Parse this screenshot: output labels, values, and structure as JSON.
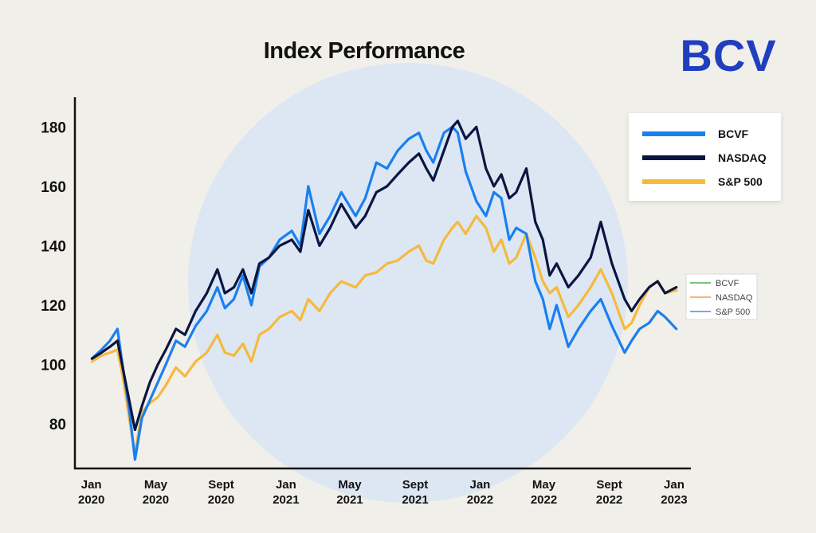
{
  "brand": {
    "logo_text": "BCV",
    "logo_color": "#1f3fbf"
  },
  "colors": {
    "background": "#f1efe9",
    "circle": "#dce7f3",
    "axis": "#111111",
    "small_legend_bcvf": "#4caf50",
    "small_legend_nasdaq": "#f39c4b",
    "small_legend_sp500": "#4a8fd8"
  },
  "chart_data": {
    "type": "line",
    "title": "Index Performance",
    "xlabel": "",
    "ylabel": "",
    "grid": false,
    "legend_position": "top-right",
    "xlim": [
      "2019-12-01",
      "2023-01-31"
    ],
    "ylim": [
      65,
      190
    ],
    "y_ticks": [
      80,
      100,
      120,
      140,
      160,
      180
    ],
    "x_ticks": [
      {
        "date": "2020-01-01",
        "line1": "Jan",
        "line2": "2020"
      },
      {
        "date": "2020-05-01",
        "line1": "May",
        "line2": "2020"
      },
      {
        "date": "2020-09-01",
        "line1": "Sept",
        "line2": "2020"
      },
      {
        "date": "2021-01-01",
        "line1": "Jan",
        "line2": "2021"
      },
      {
        "date": "2021-05-01",
        "line1": "May",
        "line2": "2021"
      },
      {
        "date": "2021-09-01",
        "line1": "Sept",
        "line2": "2021"
      },
      {
        "date": "2022-01-01",
        "line1": "Jan",
        "line2": "2022"
      },
      {
        "date": "2022-05-01",
        "line1": "May",
        "line2": "2022"
      },
      {
        "date": "2022-09-01",
        "line1": "Sept",
        "line2": "2022"
      },
      {
        "date": "2023-01-01",
        "line1": "Jan",
        "line2": "2023"
      }
    ],
    "series": [
      {
        "name": "BCVF",
        "color": "#1a7ff0",
        "points": [
          [
            "2020-01-02",
            102
          ],
          [
            "2020-01-20",
            105
          ],
          [
            "2020-02-05",
            108
          ],
          [
            "2020-02-19",
            112
          ],
          [
            "2020-03-01",
            98
          ],
          [
            "2020-03-12",
            85
          ],
          [
            "2020-03-23",
            68
          ],
          [
            "2020-04-05",
            82
          ],
          [
            "2020-04-20",
            88
          ],
          [
            "2020-05-05",
            94
          ],
          [
            "2020-05-20",
            100
          ],
          [
            "2020-06-08",
            108
          ],
          [
            "2020-06-25",
            106
          ],
          [
            "2020-07-15",
            113
          ],
          [
            "2020-08-05",
            118
          ],
          [
            "2020-08-25",
            126
          ],
          [
            "2020-09-08",
            119
          ],
          [
            "2020-09-25",
            122
          ],
          [
            "2020-10-12",
            130
          ],
          [
            "2020-10-28",
            120
          ],
          [
            "2020-11-12",
            133
          ],
          [
            "2020-11-30",
            136
          ],
          [
            "2020-12-20",
            142
          ],
          [
            "2021-01-12",
            145
          ],
          [
            "2021-01-28",
            140
          ],
          [
            "2021-02-12",
            160
          ],
          [
            "2021-03-05",
            144
          ],
          [
            "2021-03-25",
            150
          ],
          [
            "2021-04-15",
            158
          ],
          [
            "2021-05-12",
            150
          ],
          [
            "2021-05-30",
            156
          ],
          [
            "2021-06-20",
            168
          ],
          [
            "2021-07-10",
            166
          ],
          [
            "2021-07-30",
            172
          ],
          [
            "2021-08-20",
            176
          ],
          [
            "2021-09-08",
            178
          ],
          [
            "2021-09-22",
            172
          ],
          [
            "2021-10-05",
            168
          ],
          [
            "2021-10-25",
            178
          ],
          [
            "2021-11-10",
            180
          ],
          [
            "2021-11-20",
            178
          ],
          [
            "2021-12-05",
            165
          ],
          [
            "2021-12-25",
            155
          ],
          [
            "2022-01-12",
            150
          ],
          [
            "2022-01-27",
            158
          ],
          [
            "2022-02-10",
            156
          ],
          [
            "2022-02-25",
            142
          ],
          [
            "2022-03-10",
            146
          ],
          [
            "2022-03-29",
            144
          ],
          [
            "2022-04-15",
            128
          ],
          [
            "2022-04-29",
            122
          ],
          [
            "2022-05-12",
            112
          ],
          [
            "2022-05-25",
            120
          ],
          [
            "2022-06-16",
            106
          ],
          [
            "2022-07-05",
            112
          ],
          [
            "2022-07-28",
            118
          ],
          [
            "2022-08-16",
            122
          ],
          [
            "2022-09-06",
            113
          ],
          [
            "2022-09-30",
            104
          ],
          [
            "2022-10-13",
            108
          ],
          [
            "2022-10-28",
            112
          ],
          [
            "2022-11-15",
            114
          ],
          [
            "2022-12-01",
            118
          ],
          [
            "2022-12-15",
            116
          ],
          [
            "2023-01-05",
            112
          ]
        ]
      },
      {
        "name": "NASDAQ",
        "color": "#0b1541",
        "points": [
          [
            "2020-01-02",
            102
          ],
          [
            "2020-01-20",
            104
          ],
          [
            "2020-02-05",
            106
          ],
          [
            "2020-02-19",
            108
          ],
          [
            "2020-03-01",
            98
          ],
          [
            "2020-03-12",
            88
          ],
          [
            "2020-03-23",
            78
          ],
          [
            "2020-04-05",
            86
          ],
          [
            "2020-04-20",
            94
          ],
          [
            "2020-05-05",
            100
          ],
          [
            "2020-05-20",
            105
          ],
          [
            "2020-06-08",
            112
          ],
          [
            "2020-06-25",
            110
          ],
          [
            "2020-07-15",
            118
          ],
          [
            "2020-08-05",
            124
          ],
          [
            "2020-08-25",
            132
          ],
          [
            "2020-09-08",
            124
          ],
          [
            "2020-09-25",
            126
          ],
          [
            "2020-10-12",
            132
          ],
          [
            "2020-10-28",
            124
          ],
          [
            "2020-11-12",
            134
          ],
          [
            "2020-11-30",
            136
          ],
          [
            "2020-12-20",
            140
          ],
          [
            "2021-01-12",
            142
          ],
          [
            "2021-01-28",
            138
          ],
          [
            "2021-02-12",
            152
          ],
          [
            "2021-03-05",
            140
          ],
          [
            "2021-03-25",
            146
          ],
          [
            "2021-04-15",
            154
          ],
          [
            "2021-05-12",
            146
          ],
          [
            "2021-05-30",
            150
          ],
          [
            "2021-06-20",
            158
          ],
          [
            "2021-07-10",
            160
          ],
          [
            "2021-07-30",
            164
          ],
          [
            "2021-08-20",
            168
          ],
          [
            "2021-09-08",
            171
          ],
          [
            "2021-09-22",
            166
          ],
          [
            "2021-10-05",
            162
          ],
          [
            "2021-10-25",
            172
          ],
          [
            "2021-11-10",
            180
          ],
          [
            "2021-11-20",
            182
          ],
          [
            "2021-12-05",
            176
          ],
          [
            "2021-12-25",
            180
          ],
          [
            "2022-01-12",
            166
          ],
          [
            "2022-01-27",
            160
          ],
          [
            "2022-02-10",
            164
          ],
          [
            "2022-02-25",
            156
          ],
          [
            "2022-03-10",
            158
          ],
          [
            "2022-03-29",
            166
          ],
          [
            "2022-04-15",
            148
          ],
          [
            "2022-04-29",
            142
          ],
          [
            "2022-05-12",
            130
          ],
          [
            "2022-05-25",
            134
          ],
          [
            "2022-06-16",
            126
          ],
          [
            "2022-07-05",
            130
          ],
          [
            "2022-07-28",
            136
          ],
          [
            "2022-08-16",
            148
          ],
          [
            "2022-09-06",
            134
          ],
          [
            "2022-09-30",
            122
          ],
          [
            "2022-10-13",
            118
          ],
          [
            "2022-10-28",
            122
          ],
          [
            "2022-11-15",
            126
          ],
          [
            "2022-12-01",
            128
          ],
          [
            "2022-12-15",
            124
          ],
          [
            "2023-01-05",
            126
          ]
        ]
      },
      {
        "name": "S&P 500",
        "color": "#f6b93b",
        "points": [
          [
            "2020-01-02",
            101
          ],
          [
            "2020-01-20",
            103
          ],
          [
            "2020-02-05",
            104
          ],
          [
            "2020-02-19",
            105
          ],
          [
            "2020-03-01",
            95
          ],
          [
            "2020-03-12",
            82
          ],
          [
            "2020-03-23",
            70
          ],
          [
            "2020-04-05",
            84
          ],
          [
            "2020-04-20",
            87
          ],
          [
            "2020-05-05",
            89
          ],
          [
            "2020-05-20",
            93
          ],
          [
            "2020-06-08",
            99
          ],
          [
            "2020-06-25",
            96
          ],
          [
            "2020-07-15",
            101
          ],
          [
            "2020-08-05",
            104
          ],
          [
            "2020-08-25",
            110
          ],
          [
            "2020-09-08",
            104
          ],
          [
            "2020-09-25",
            103
          ],
          [
            "2020-10-12",
            107
          ],
          [
            "2020-10-28",
            101
          ],
          [
            "2020-11-12",
            110
          ],
          [
            "2020-11-30",
            112
          ],
          [
            "2020-12-20",
            116
          ],
          [
            "2021-01-12",
            118
          ],
          [
            "2021-01-28",
            115
          ],
          [
            "2021-02-12",
            122
          ],
          [
            "2021-03-05",
            118
          ],
          [
            "2021-03-25",
            124
          ],
          [
            "2021-04-15",
            128
          ],
          [
            "2021-05-12",
            126
          ],
          [
            "2021-05-30",
            130
          ],
          [
            "2021-06-20",
            131
          ],
          [
            "2021-07-10",
            134
          ],
          [
            "2021-07-30",
            135
          ],
          [
            "2021-08-20",
            138
          ],
          [
            "2021-09-08",
            140
          ],
          [
            "2021-09-22",
            135
          ],
          [
            "2021-10-05",
            134
          ],
          [
            "2021-10-25",
            142
          ],
          [
            "2021-11-10",
            146
          ],
          [
            "2021-11-20",
            148
          ],
          [
            "2021-12-05",
            144
          ],
          [
            "2021-12-25",
            150
          ],
          [
            "2022-01-12",
            146
          ],
          [
            "2022-01-27",
            138
          ],
          [
            "2022-02-10",
            142
          ],
          [
            "2022-02-25",
            134
          ],
          [
            "2022-03-10",
            136
          ],
          [
            "2022-03-29",
            144
          ],
          [
            "2022-04-15",
            136
          ],
          [
            "2022-04-29",
            128
          ],
          [
            "2022-05-12",
            124
          ],
          [
            "2022-05-25",
            126
          ],
          [
            "2022-06-16",
            116
          ],
          [
            "2022-07-05",
            120
          ],
          [
            "2022-07-28",
            126
          ],
          [
            "2022-08-16",
            132
          ],
          [
            "2022-09-06",
            124
          ],
          [
            "2022-09-30",
            112
          ],
          [
            "2022-10-13",
            114
          ],
          [
            "2022-10-28",
            120
          ],
          [
            "2022-11-15",
            126
          ],
          [
            "2022-12-01",
            128
          ],
          [
            "2022-12-15",
            124
          ],
          [
            "2023-01-05",
            125
          ]
        ]
      }
    ],
    "secondary_legend": [
      "BCVF",
      "NASDAQ",
      "S&P 500"
    ]
  }
}
